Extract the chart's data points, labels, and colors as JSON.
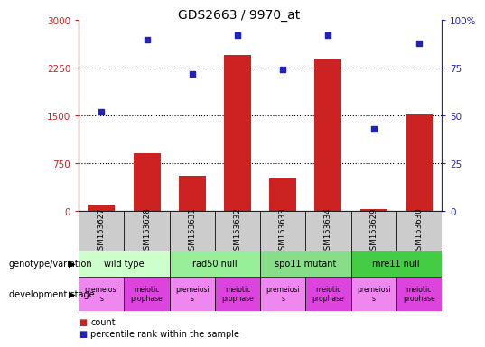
{
  "title": "GDS2663 / 9970_at",
  "samples": [
    "GSM153627",
    "GSM153628",
    "GSM153631",
    "GSM153632",
    "GSM153633",
    "GSM153634",
    "GSM153629",
    "GSM153630"
  ],
  "counts": [
    100,
    900,
    550,
    2450,
    500,
    2400,
    30,
    1520
  ],
  "percentiles": [
    52,
    90,
    72,
    92,
    74,
    92,
    43,
    88
  ],
  "ylim_left": [
    0,
    3000
  ],
  "ylim_right": [
    0,
    100
  ],
  "yticks_left": [
    0,
    750,
    1500,
    2250,
    3000
  ],
  "yticks_right": [
    0,
    25,
    50,
    75,
    100
  ],
  "ytick_labels_right": [
    "0",
    "25",
    "50",
    "75",
    "100%"
  ],
  "bar_color": "#cc2222",
  "dot_color": "#2222bb",
  "grid_color": "#000000",
  "genotypes": [
    {
      "label": "wild type",
      "span": [
        0,
        2
      ],
      "color": "#ccffcc"
    },
    {
      "label": "rad50 null",
      "span": [
        2,
        4
      ],
      "color": "#99ee99"
    },
    {
      "label": "spo11 mutant",
      "span": [
        4,
        6
      ],
      "color": "#88dd88"
    },
    {
      "label": "mre11 null",
      "span": [
        6,
        8
      ],
      "color": "#44cc44"
    }
  ],
  "dev_stages": [
    {
      "label": "premeiosi\ns",
      "span": [
        0,
        1
      ],
      "color": "#ee88ee"
    },
    {
      "label": "meiotic\nprophase",
      "span": [
        1,
        2
      ],
      "color": "#dd44dd"
    },
    {
      "label": "premeiosi\ns",
      "span": [
        2,
        3
      ],
      "color": "#ee88ee"
    },
    {
      "label": "meiotic\nprophase",
      "span": [
        3,
        4
      ],
      "color": "#dd44dd"
    },
    {
      "label": "premeiosi\ns",
      "span": [
        4,
        5
      ],
      "color": "#ee88ee"
    },
    {
      "label": "meiotic\nprophase",
      "span": [
        5,
        6
      ],
      "color": "#dd44dd"
    },
    {
      "label": "premeiosi\ns",
      "span": [
        6,
        7
      ],
      "color": "#ee88ee"
    },
    {
      "label": "meiotic\nprophase",
      "span": [
        7,
        8
      ],
      "color": "#dd44dd"
    }
  ],
  "sample_bg_color": "#cccccc",
  "legend_count_color": "#cc2222",
  "legend_pct_color": "#2222bb",
  "left_axis_color": "#cc2222",
  "right_axis_color": "#2222bb",
  "title_fontsize": 10,
  "tick_fontsize": 7.5,
  "small_fontsize": 6.5,
  "label_fontsize": 7.5
}
